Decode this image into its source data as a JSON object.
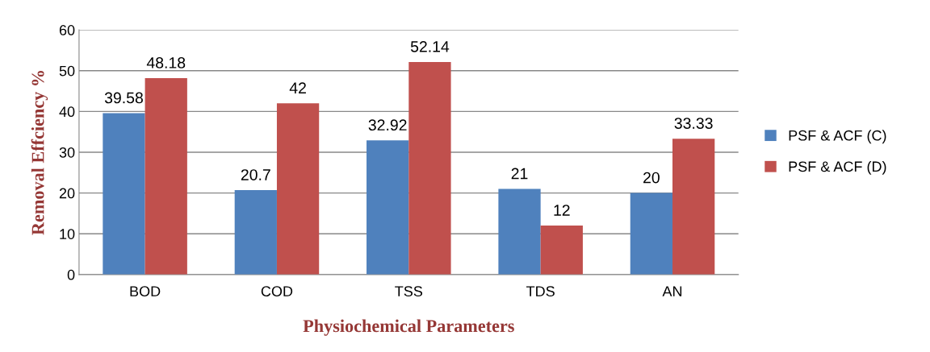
{
  "chart_data": {
    "type": "bar",
    "xlabel": "Physiochemical Parameters",
    "ylabel": "Removal Effciency %",
    "categories": [
      "BOD",
      "COD",
      "TSS",
      "TDS",
      "AN"
    ],
    "series": [
      {
        "name": "PSF & ACF (C)",
        "color": "#4f81bd",
        "values": [
          39.58,
          20.7,
          32.92,
          21,
          20
        ]
      },
      {
        "name": "PSF & ACF (D)",
        "color": "#c0504d",
        "values": [
          48.18,
          42,
          52.14,
          12,
          33.33
        ]
      }
    ],
    "ylim": [
      0,
      60
    ],
    "yticks": [
      0,
      10,
      20,
      30,
      40,
      50,
      60
    ],
    "grid": "y",
    "legend": "right",
    "data_labels": true
  }
}
